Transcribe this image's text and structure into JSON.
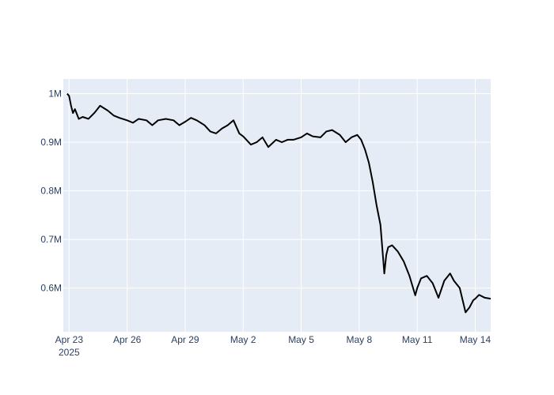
{
  "chart_data": {
    "type": "line",
    "title": "",
    "xlabel": "",
    "ylabel": "",
    "grid": true,
    "legend": "none",
    "colors": {
      "plot_background": "#e5ecf6",
      "paper_background": "#ffffff",
      "grid": "#ffffff",
      "line": "#000000",
      "tick_text": "#2a3f5f"
    },
    "x_axis": {
      "type": "date",
      "range_days": [
        -0.3,
        21.8
      ],
      "ticks": [
        {
          "day": 0,
          "label": "Apr 23",
          "sublabel": "2025"
        },
        {
          "day": 3,
          "label": "Apr 26"
        },
        {
          "day": 6,
          "label": "Apr 29"
        },
        {
          "day": 9,
          "label": "May 2"
        },
        {
          "day": 12,
          "label": "May 5"
        },
        {
          "day": 15,
          "label": "May 8"
        },
        {
          "day": 18,
          "label": "May 11"
        },
        {
          "day": 21,
          "label": "May 14"
        }
      ],
      "day_zero": "2025-04-23"
    },
    "y_axis": {
      "ylim": [
        510000,
        1030000
      ],
      "ticks": [
        {
          "value": 600000,
          "label": "0.6M"
        },
        {
          "value": 700000,
          "label": "0.7M"
        },
        {
          "value": 800000,
          "label": "0.8M"
        },
        {
          "value": 900000,
          "label": "0.9M"
        },
        {
          "value": 1000000,
          "label": "1M"
        }
      ]
    },
    "series": [
      {
        "name": "value",
        "x_days": [
          -0.1,
          0.0,
          0.1,
          0.2,
          0.3,
          0.5,
          0.7,
          1.0,
          1.3,
          1.6,
          2.0,
          2.3,
          2.6,
          3.0,
          3.3,
          3.6,
          4.0,
          4.3,
          4.6,
          5.0,
          5.4,
          5.7,
          6.0,
          6.3,
          6.6,
          7.0,
          7.3,
          7.6,
          7.9,
          8.2,
          8.5,
          8.8,
          9.0,
          9.4,
          9.7,
          10.0,
          10.3,
          10.7,
          11.0,
          11.3,
          11.6,
          12.0,
          12.3,
          12.6,
          13.0,
          13.3,
          13.6,
          14.0,
          14.3,
          14.6,
          14.9,
          15.1,
          15.3,
          15.5,
          15.7,
          15.9,
          16.1,
          16.3,
          16.4,
          16.5,
          16.7,
          17.0,
          17.3,
          17.6,
          17.9,
          18.0,
          18.2,
          18.5,
          18.8,
          19.1,
          19.4,
          19.7,
          19.9,
          20.2,
          20.5,
          20.7,
          20.9,
          21.0,
          21.2,
          21.5,
          21.8
        ],
        "values": [
          1000000,
          995000,
          975000,
          960000,
          968000,
          948000,
          952000,
          948000,
          960000,
          975000,
          965000,
          955000,
          950000,
          945000,
          940000,
          948000,
          945000,
          935000,
          945000,
          948000,
          945000,
          935000,
          942000,
          950000,
          945000,
          935000,
          922000,
          918000,
          928000,
          935000,
          945000,
          918000,
          912000,
          895000,
          900000,
          910000,
          890000,
          905000,
          900000,
          905000,
          905000,
          910000,
          918000,
          912000,
          910000,
          922000,
          925000,
          915000,
          900000,
          910000,
          915000,
          905000,
          885000,
          858000,
          818000,
          770000,
          730000,
          630000,
          668000,
          684000,
          688000,
          675000,
          655000,
          625000,
          585000,
          600000,
          620000,
          625000,
          610000,
          580000,
          615000,
          630000,
          615000,
          600000,
          550000,
          560000,
          575000,
          578000,
          586000,
          580000,
          578000
        ]
      }
    ]
  }
}
